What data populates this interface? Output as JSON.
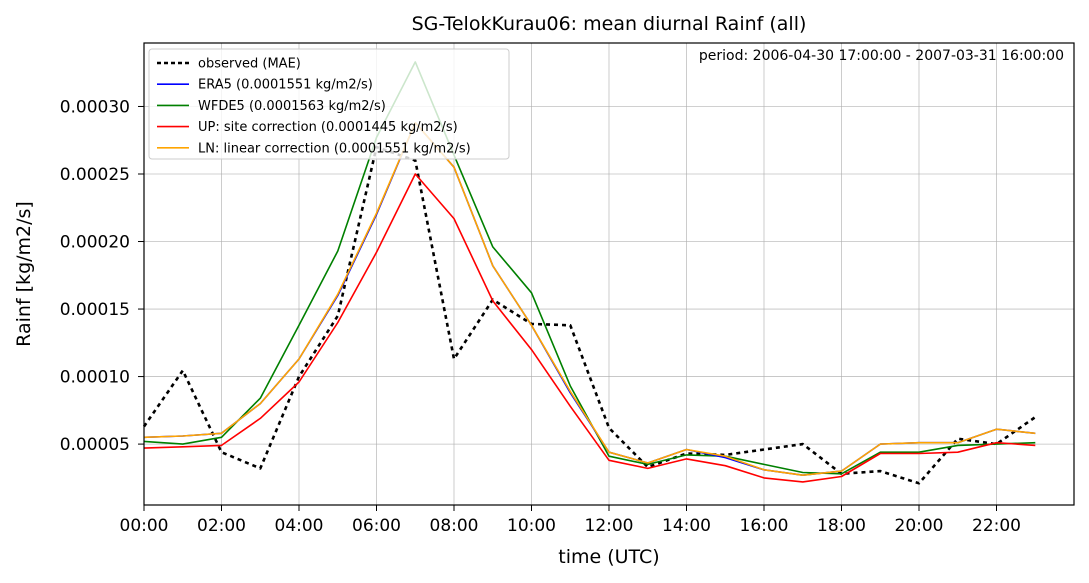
{
  "chart_data": {
    "type": "line",
    "title": "SG-TelokKurau06: mean diurnal Rainf (all)",
    "xlabel": "time (UTC)",
    "ylabel": "Rainf [kg/m2/s]",
    "annotation": "period: 2006-04-30 17:00:00 - 2007-03-31 16:00:00",
    "x": [
      0,
      1,
      2,
      3,
      4,
      5,
      6,
      7,
      8,
      9,
      10,
      11,
      12,
      13,
      14,
      15,
      16,
      17,
      18,
      19,
      20,
      21,
      22,
      23
    ],
    "xlim": [
      0,
      24
    ],
    "ylim": [
      4.9e-06,
      0.000347
    ],
    "x_ticks": [
      0,
      2,
      4,
      6,
      8,
      10,
      12,
      14,
      16,
      18,
      20,
      22
    ],
    "x_tick_labels": [
      "00:00",
      "02:00",
      "04:00",
      "06:00",
      "08:00",
      "10:00",
      "12:00",
      "14:00",
      "16:00",
      "18:00",
      "20:00",
      "22:00"
    ],
    "y_ticks": [
      5e-05,
      0.0001,
      0.00015,
      0.0002,
      0.00025,
      0.0003
    ],
    "y_tick_labels": [
      "0.00005",
      "0.00010",
      "0.00015",
      "0.00020",
      "0.00025",
      "0.00030"
    ],
    "grid": true,
    "legend_position": "top-left",
    "series": [
      {
        "name": "observed (MAE)",
        "color": "#000000",
        "dashed": true,
        "values": [
          6.3e-05,
          0.0001045,
          4.4e-05,
          3.2e-05,
          0.0001,
          0.000145,
          0.00027,
          0.00026,
          0.000113,
          0.000157,
          0.000139,
          0.000138,
          6.2e-05,
          3.3e-05,
          4.3e-05,
          4.2e-05,
          4.6e-05,
          5e-05,
          2.8e-05,
          3e-05,
          2.1e-05,
          5.4e-05,
          5e-05,
          7e-05
        ]
      },
      {
        "name": "ERA5 (0.0001551 kg/m2/s)",
        "color": "#0000ff",
        "dashed": false,
        "values": [
          5.5e-05,
          5.6e-05,
          5.8e-05,
          8e-05,
          0.000113,
          0.00016,
          0.00022,
          0.000288,
          0.000255,
          0.000182,
          0.000138,
          8.8e-05,
          4.4e-05,
          3.6e-05,
          4.6e-05,
          4e-05,
          3.1e-05,
          2.7e-05,
          3e-05,
          5e-05,
          5.1e-05,
          5.1e-05,
          6.1e-05,
          5.8e-05
        ]
      },
      {
        "name": "WFDE5 (0.0001563 kg/m2/s)",
        "color": "#008000",
        "dashed": false,
        "values": [
          5.2e-05,
          5e-05,
          5.5e-05,
          8.4e-05,
          0.000138,
          0.000193,
          0.000277,
          0.000333,
          0.000264,
          0.000196,
          0.000162,
          9.3e-05,
          4.1e-05,
          3.5e-05,
          4.2e-05,
          4.1e-05,
          3.5e-05,
          2.9e-05,
          2.8e-05,
          4.4e-05,
          4.4e-05,
          4.9e-05,
          5e-05,
          5.1e-05
        ]
      },
      {
        "name": "UP: site correction (0.0001445 kg/m2/s)",
        "color": "#ff0000",
        "dashed": false,
        "values": [
          4.7e-05,
          4.8e-05,
          4.9e-05,
          6.9e-05,
          9.6e-05,
          0.00014,
          0.000192,
          0.00025,
          0.000217,
          0.000156,
          0.00012,
          7.8e-05,
          3.8e-05,
          3.2e-05,
          3.9e-05,
          3.4e-05,
          2.5e-05,
          2.2e-05,
          2.6e-05,
          4.3e-05,
          4.3e-05,
          4.4e-05,
          5.1e-05,
          4.9e-05
        ]
      },
      {
        "name": "LN: linear correction (0.0001551 kg/m2/s)",
        "color": "#ffa500",
        "dashed": false,
        "values": [
          5.5e-05,
          5.6e-05,
          5.8e-05,
          8e-05,
          0.000113,
          0.000161,
          0.000221,
          0.000288,
          0.000255,
          0.000182,
          0.000138,
          8.9e-05,
          4.4e-05,
          3.6e-05,
          4.6e-05,
          4.1e-05,
          3.1e-05,
          2.7e-05,
          3e-05,
          5e-05,
          5.1e-05,
          5.1e-05,
          6.1e-05,
          5.8e-05
        ]
      }
    ]
  }
}
